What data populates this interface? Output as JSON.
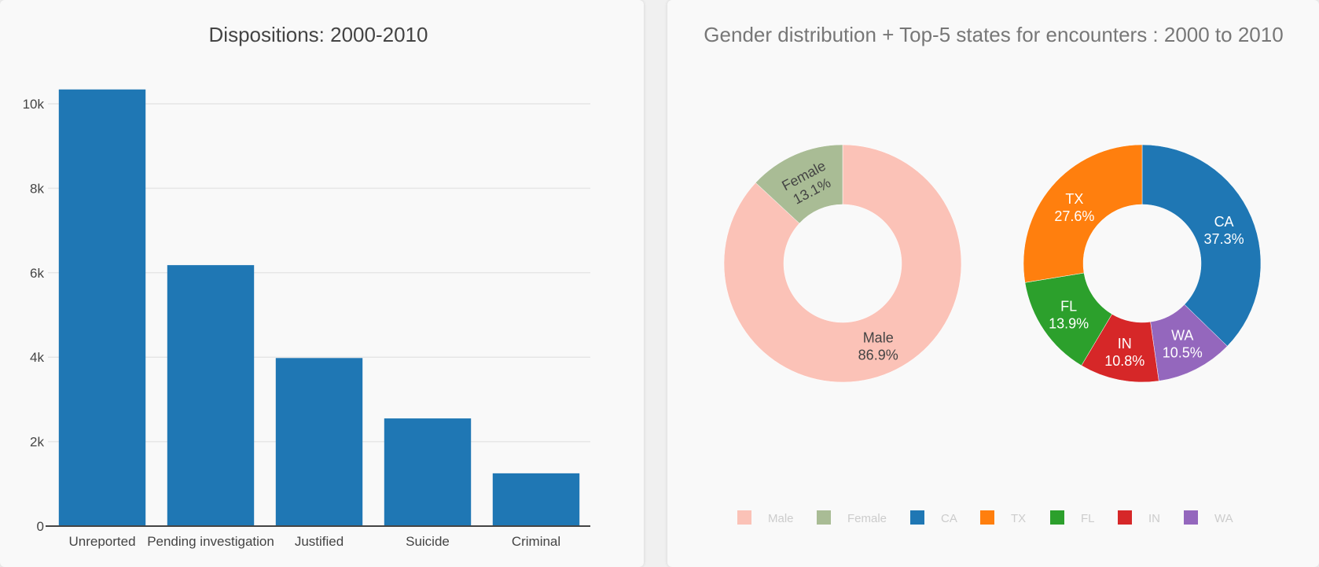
{
  "chart_data": [
    {
      "type": "bar",
      "title": "Dispositions: 2000-2010",
      "categories": [
        "Unreported",
        "Pending investigation",
        "Justified",
        "Suicide",
        "Criminal"
      ],
      "values": [
        10340,
        6180,
        3980,
        2550,
        1250
      ],
      "ylim": [
        0,
        10000
      ],
      "yticks": [
        0,
        2000,
        4000,
        6000,
        8000,
        10000
      ],
      "ytick_labels": [
        "0",
        "2k",
        "4k",
        "6k",
        "8k",
        "10k"
      ],
      "grid": true,
      "color": "#1f77b4"
    },
    {
      "type": "pie",
      "title": "Gender distribution + Top-5 states for encounters : 2000 to 2010",
      "donut": true,
      "groups": [
        {
          "slices": [
            {
              "label": "Male",
              "value": 86.9,
              "text": "86.9%",
              "color": "#fbc2b7",
              "text_color": "#444444"
            },
            {
              "label": "Female",
              "value": 13.1,
              "text": "13.1%",
              "color": "#a9bc95",
              "text_color": "#444444"
            }
          ]
        },
        {
          "slices": [
            {
              "label": "CA",
              "value": 37.3,
              "text": "37.3%",
              "color": "#1f77b4",
              "text_color": "#ffffff"
            },
            {
              "label": "WA",
              "value": 10.5,
              "text": "10.5%",
              "color": "#9467bd",
              "text_color": "#ffffff"
            },
            {
              "label": "IN",
              "value": 10.8,
              "text": "10.8%",
              "color": "#d62728",
              "text_color": "#ffffff"
            },
            {
              "label": "FL",
              "value": 13.9,
              "text": "13.9%",
              "color": "#2ca02c",
              "text_color": "#ffffff"
            },
            {
              "label": "TX",
              "value": 27.6,
              "text": "27.6%",
              "color": "#ff7f0e",
              "text_color": "#ffffff"
            }
          ]
        }
      ],
      "legend": {
        "placement": "bottom",
        "items": [
          {
            "label": "Male",
            "color": "#fbc2b7"
          },
          {
            "label": "Female",
            "color": "#a9bc95"
          },
          {
            "label": "CA",
            "color": "#1f77b4"
          },
          {
            "label": "TX",
            "color": "#ff7f0e"
          },
          {
            "label": "FL",
            "color": "#2ca02c"
          },
          {
            "label": "IN",
            "color": "#d62728"
          },
          {
            "label": "WA",
            "color": "#9467bd"
          }
        ]
      }
    }
  ]
}
